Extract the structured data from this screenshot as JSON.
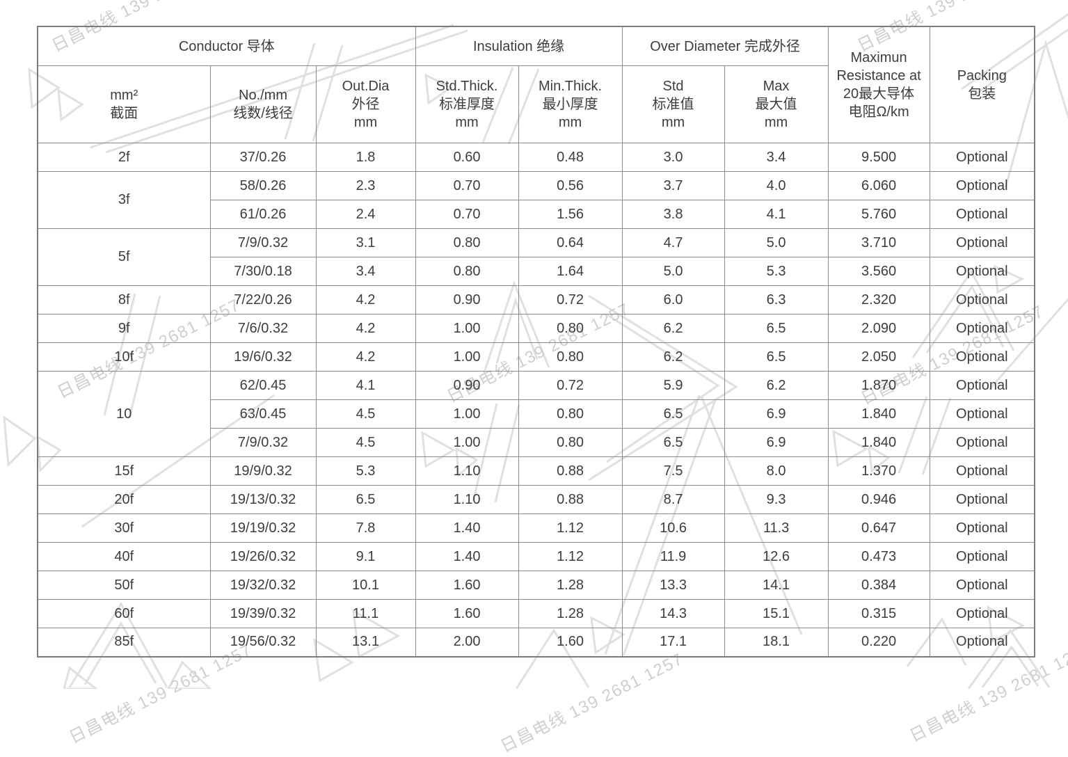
{
  "watermark": {
    "text": "日昌电线 139 2681 1257",
    "color": "#cfcfcf"
  },
  "table": {
    "groups": [
      {
        "label": "Conductor 导体",
        "span": 3
      },
      {
        "label": "Insulation 绝缘",
        "span": 2
      },
      {
        "label": "Over Diameter 完成外径",
        "span": 2
      }
    ],
    "tall": [
      {
        "label": "Maximun\nResistance at\n20最大导体\n电阻Ω/km"
      },
      {
        "label": "Packing\n包装"
      }
    ],
    "columns": [
      "mm²\n截面",
      "No./mm\n线数/线径",
      "Out.Dia\n外径\nmm",
      "Std.Thick.\n标准厚度\nmm",
      "Min.Thick.\n最小厚度\nmm",
      "Std\n标准值\nmm",
      "Max\n最大值\nmm"
    ],
    "rows": [
      {
        "size": "2f",
        "rowspan": 1,
        "cells": [
          "37/0.26",
          "1.8",
          "0.60",
          "0.48",
          "3.0",
          "3.4",
          "9.500",
          "Optional"
        ]
      },
      {
        "size": "3f",
        "rowspan": 2,
        "cells": [
          "58/0.26",
          "2.3",
          "0.70",
          "0.56",
          "3.7",
          "4.0",
          "6.060",
          "Optional"
        ]
      },
      {
        "size": null,
        "rowspan": 1,
        "cells": [
          "61/0.26",
          "2.4",
          "0.70",
          "1.56",
          "3.8",
          "4.1",
          "5.760",
          "Optional"
        ]
      },
      {
        "size": "5f",
        "rowspan": 2,
        "cells": [
          "7/9/0.32",
          "3.1",
          "0.80",
          "0.64",
          "4.7",
          "5.0",
          "3.710",
          "Optional"
        ]
      },
      {
        "size": null,
        "rowspan": 1,
        "cells": [
          "7/30/0.18",
          "3.4",
          "0.80",
          "1.64",
          "5.0",
          "5.3",
          "3.560",
          "Optional"
        ]
      },
      {
        "size": "8f",
        "rowspan": 1,
        "cells": [
          "7/22/0.26",
          "4.2",
          "0.90",
          "0.72",
          "6.0",
          "6.3",
          "2.320",
          "Optional"
        ]
      },
      {
        "size": "9f",
        "rowspan": 1,
        "cells": [
          "7/6/0.32",
          "4.2",
          "1.00",
          "0.80",
          "6.2",
          "6.5",
          "2.090",
          "Optional"
        ]
      },
      {
        "size": "10f",
        "rowspan": 1,
        "cells": [
          "19/6/0.32",
          "4.2",
          "1.00",
          "0.80",
          "6.2",
          "6.5",
          "2.050",
          "Optional"
        ]
      },
      {
        "size": "10",
        "rowspan": 3,
        "cells": [
          "62/0.45",
          "4.1",
          "0.90",
          "0.72",
          "5.9",
          "6.2",
          "1.870",
          "Optional"
        ]
      },
      {
        "size": null,
        "rowspan": 1,
        "cells": [
          "63/0.45",
          "4.5",
          "1.00",
          "0.80",
          "6.5",
          "6.9",
          "1.840",
          "Optional"
        ]
      },
      {
        "size": null,
        "rowspan": 1,
        "cells": [
          "7/9/0.32",
          "4.5",
          "1.00",
          "0.80",
          "6.5",
          "6.9",
          "1.840",
          "Optional"
        ]
      },
      {
        "size": "15f",
        "rowspan": 1,
        "cells": [
          "19/9/0.32",
          "5.3",
          "1.10",
          "0.88",
          "7.5",
          "8.0",
          "1.370",
          "Optional"
        ]
      },
      {
        "size": "20f",
        "rowspan": 1,
        "cells": [
          "19/13/0.32",
          "6.5",
          "1.10",
          "0.88",
          "8.7",
          "9.3",
          "0.946",
          "Optional"
        ]
      },
      {
        "size": "30f",
        "rowspan": 1,
        "cells": [
          "19/19/0.32",
          "7.8",
          "1.40",
          "1.12",
          "10.6",
          "11.3",
          "0.647",
          "Optional"
        ]
      },
      {
        "size": "40f",
        "rowspan": 1,
        "cells": [
          "19/26/0.32",
          "9.1",
          "1.40",
          "1.12",
          "11.9",
          "12.6",
          "0.473",
          "Optional"
        ]
      },
      {
        "size": "50f",
        "rowspan": 1,
        "cells": [
          "19/32/0.32",
          "10.1",
          "1.60",
          "1.28",
          "13.3",
          "14.1",
          "0.384",
          "Optional"
        ]
      },
      {
        "size": "60f",
        "rowspan": 1,
        "cells": [
          "19/39/0.32",
          "11.1",
          "1.60",
          "1.28",
          "14.3",
          "15.1",
          "0.315",
          "Optional"
        ]
      },
      {
        "size": "85f",
        "rowspan": 1,
        "cells": [
          "19/56/0.32",
          "13.1",
          "2.00",
          "1.60",
          "17.1",
          "18.1",
          "0.220",
          "Optional"
        ]
      }
    ]
  }
}
